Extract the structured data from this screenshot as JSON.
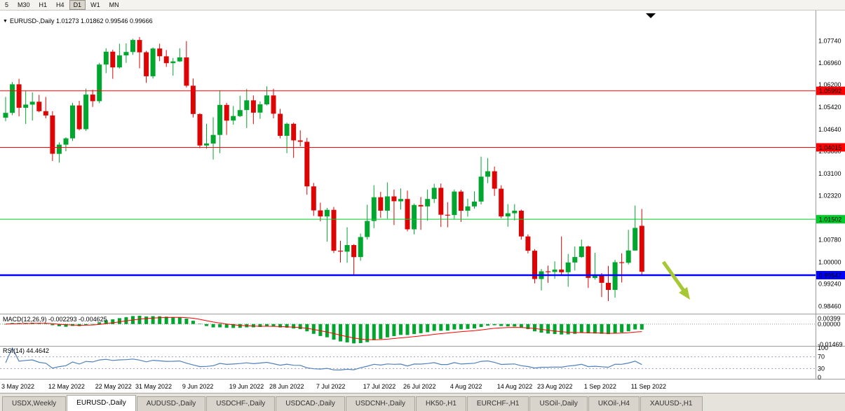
{
  "colors": {
    "up": "#00a62d",
    "down": "#dd0404",
    "red_line": "#ff0000",
    "green_line": "#00cc2c",
    "blue_line": "#0000ff",
    "macd_hist": "#00a62d",
    "macd_signal": "#ff0000",
    "rsi_line": "#4f81bd",
    "arrow": "#a6c832"
  },
  "toolbar": {
    "timeframes": [
      "5",
      "M30",
      "H1",
      "H4",
      "D1",
      "W1",
      "MN"
    ],
    "active": "D1"
  },
  "chart": {
    "title": "EURUSD-,Daily 1.01273 1.01862 0.99546 0.99666"
  },
  "chart_data": {
    "type": "candlestick",
    "symbol": "EURUSD-",
    "timeframe": "Daily",
    "ohlc_readout": {
      "open": "1.01273",
      "high": "1.01862",
      "low": "0.99546",
      "close": "0.99666"
    },
    "y_axis_ticks": [
      "1.07740",
      "1.06960",
      "1.06200",
      "1.05420",
      "1.04640",
      "1.03880",
      "1.03100",
      "1.02320",
      "1.01540",
      "1.00780",
      "1.00000",
      "0.99240",
      "0.98460"
    ],
    "h_lines": [
      {
        "name": "resistance-line-upper",
        "label": "1.05992",
        "value": 1.05992,
        "color": "#ff0000",
        "width": 1
      },
      {
        "name": "resistance-line-lower",
        "label": "1.04015",
        "value": 1.04015,
        "color": "#ff0000",
        "width": 1
      },
      {
        "name": "support-line-green",
        "label": "1.01502",
        "value": 1.01502,
        "color": "#00cc2c",
        "width": 1
      },
      {
        "name": "current-price-line",
        "label": "0.99547",
        "value": 0.99547,
        "color": "#0000ff",
        "width": 2.5
      }
    ],
    "x_labels": [
      {
        "label": "3 May 2022",
        "i": 0
      },
      {
        "label": "12 May 2022",
        "i": 7
      },
      {
        "label": "22 May 2022",
        "i": 14
      },
      {
        "label": "31 May 2022",
        "i": 20
      },
      {
        "label": "9 Jun 2022",
        "i": 27
      },
      {
        "label": "19 Jun 2022",
        "i": 34
      },
      {
        "label": "28 Jun 2022",
        "i": 40
      },
      {
        "label": "7 Jul 2022",
        "i": 47
      },
      {
        "label": "17 Jul 2022",
        "i": 54
      },
      {
        "label": "26 Jul 2022",
        "i": 60
      },
      {
        "label": "4 Aug 2022",
        "i": 67
      },
      {
        "label": "14 Aug 2022",
        "i": 74
      },
      {
        "label": "23 Aug 2022",
        "i": 80
      },
      {
        "label": "1 Sep 2022",
        "i": 87
      },
      {
        "label": "11 Sep 2022",
        "i": 94
      }
    ],
    "candles": [
      [
        1.0505,
        1.0578,
        1.0493,
        1.0522
      ],
      [
        1.0522,
        1.063,
        1.0514,
        1.0622
      ],
      [
        1.0622,
        1.0641,
        1.051,
        1.054
      ],
      [
        1.054,
        1.0599,
        1.0483,
        1.0551
      ],
      [
        1.0551,
        1.0594,
        1.0495,
        1.0561
      ],
      [
        1.0561,
        1.0585,
        1.0524,
        1.0528
      ],
      [
        1.0528,
        1.0578,
        1.0503,
        1.0513
      ],
      [
        1.0513,
        1.0528,
        1.0354,
        1.0379
      ],
      [
        1.0379,
        1.0419,
        1.0348,
        1.0411
      ],
      [
        1.0411,
        1.0437,
        1.0388,
        1.0433
      ],
      [
        1.0433,
        1.0557,
        1.0424,
        1.0548
      ],
      [
        1.0548,
        1.0564,
        1.0461,
        1.0465
      ],
      [
        1.0465,
        1.0607,
        1.0459,
        1.0586
      ],
      [
        1.0586,
        1.0603,
        1.0543,
        1.0563
      ],
      [
        1.0563,
        1.0697,
        1.0556,
        1.0691
      ],
      [
        1.0691,
        1.0748,
        1.0661,
        1.0736
      ],
      [
        1.0736,
        1.0743,
        1.0641,
        1.0681
      ],
      [
        1.0681,
        1.0764,
        1.0677,
        1.0723
      ],
      [
        1.0723,
        1.0765,
        1.0697,
        1.0735
      ],
      [
        1.0735,
        1.0781,
        1.0725,
        1.0777
      ],
      [
        1.0777,
        1.0787,
        1.0678,
        1.0734
      ],
      [
        1.0734,
        1.0739,
        1.0627,
        1.065
      ],
      [
        1.065,
        1.0751,
        1.0642,
        1.0747
      ],
      [
        1.0747,
        1.0764,
        1.0703,
        1.072
      ],
      [
        1.072,
        1.0742,
        1.0683,
        1.0696
      ],
      [
        1.0696,
        1.0714,
        1.0652,
        1.0702
      ],
      [
        1.0702,
        1.0748,
        1.07,
        1.0716
      ],
      [
        1.0716,
        1.0773,
        1.0611,
        1.0617
      ],
      [
        1.0617,
        1.0642,
        1.0506,
        1.0518
      ],
      [
        1.0518,
        1.0521,
        1.0399,
        1.0408
      ],
      [
        1.0408,
        1.0484,
        1.0397,
        1.0415
      ],
      [
        1.0415,
        1.0507,
        1.0359,
        1.0445
      ],
      [
        1.0445,
        1.0601,
        1.0381,
        1.055
      ],
      [
        1.055,
        1.0557,
        1.0445,
        1.0495
      ],
      [
        1.0495,
        1.0546,
        1.0481,
        1.0511
      ],
      [
        1.0511,
        1.0582,
        1.0508,
        1.0532
      ],
      [
        1.0532,
        1.0606,
        1.0469,
        1.0566
      ],
      [
        1.0566,
        1.0583,
        1.0483,
        1.0523
      ],
      [
        1.0523,
        1.0562,
        1.0501,
        1.0552
      ],
      [
        1.0552,
        1.0615,
        1.0548,
        1.0583
      ],
      [
        1.0583,
        1.0606,
        1.0503,
        1.0519
      ],
      [
        1.0519,
        1.0536,
        1.0433,
        1.0442
      ],
      [
        1.0442,
        1.0488,
        1.0381,
        1.0484
      ],
      [
        1.0484,
        1.0488,
        1.0365,
        1.0426
      ],
      [
        1.0426,
        1.0461,
        1.0405,
        1.0421
      ],
      [
        1.0421,
        1.0435,
        1.0236,
        1.0265
      ],
      [
        1.0265,
        1.0277,
        1.0162,
        1.0181
      ],
      [
        1.0181,
        1.0208,
        1.0143,
        1.016
      ],
      [
        1.016,
        1.019,
        1.0072,
        1.0183
      ],
      [
        1.0183,
        1.0193,
        1.0032,
        1.004
      ],
      [
        1.004,
        1.0075,
        0.9999,
        1.0037
      ],
      [
        1.0037,
        1.0122,
        0.9998,
        1.006
      ],
      [
        1.006,
        1.0063,
        0.9952,
        1.0018
      ],
      [
        1.0018,
        1.01,
        1.0005,
        1.0088
      ],
      [
        1.0088,
        1.0201,
        1.0079,
        1.0144
      ],
      [
        1.0144,
        1.0269,
        1.0119,
        1.0227
      ],
      [
        1.0227,
        1.0246,
        1.0155,
        1.018
      ],
      [
        1.018,
        1.0279,
        1.0152,
        1.023
      ],
      [
        1.023,
        1.0254,
        1.013,
        1.0213
      ],
      [
        1.0213,
        1.0258,
        1.0184,
        1.0221
      ],
      [
        1.0221,
        1.025,
        1.0108,
        1.0115
      ],
      [
        1.0115,
        1.0205,
        1.0097,
        1.02
      ],
      [
        1.02,
        1.0228,
        1.0113,
        1.0195
      ],
      [
        1.0195,
        1.0254,
        1.0145,
        1.0221
      ],
      [
        1.0221,
        1.0274,
        1.0207,
        1.026
      ],
      [
        1.026,
        1.0275,
        1.0123,
        1.0166
      ],
      [
        1.0166,
        1.021,
        1.0122,
        1.0165
      ],
      [
        1.0165,
        1.0254,
        1.0151,
        1.0247
      ],
      [
        1.0247,
        1.0253,
        1.0141,
        1.018
      ],
      [
        1.018,
        1.0222,
        1.0159,
        1.0195
      ],
      [
        1.0195,
        1.0248,
        1.0187,
        1.0212
      ],
      [
        1.0212,
        1.0369,
        1.0202,
        1.0299
      ],
      [
        1.0299,
        1.0364,
        1.0276,
        1.0318
      ],
      [
        1.0318,
        1.0334,
        1.0232,
        1.0257
      ],
      [
        1.0257,
        1.0269,
        1.0154,
        1.016
      ],
      [
        1.016,
        1.0203,
        1.0124,
        1.0171
      ],
      [
        1.0171,
        1.0203,
        1.0146,
        1.018
      ],
      [
        1.018,
        1.0184,
        1.0079,
        1.009
      ],
      [
        1.009,
        1.0097,
        1.0031,
        1.004
      ],
      [
        1.004,
        1.0046,
        0.9926,
        0.9941
      ],
      [
        0.9941,
        0.9976,
        0.9901,
        0.9968
      ],
      [
        0.9968,
        0.9988,
        0.9928,
        0.9966
      ],
      [
        0.9966,
        1.0003,
        0.9942,
        0.9974
      ],
      [
        0.9974,
        1.009,
        0.9957,
        0.9965
      ],
      [
        0.9965,
        1.0029,
        0.9914,
        0.9999
      ],
      [
        0.9999,
        1.0055,
        0.9971,
        1.0018
      ],
      [
        1.0018,
        1.0079,
        1.0015,
        1.0055
      ],
      [
        1.0055,
        1.0058,
        0.991,
        0.9945
      ],
      [
        0.9945,
        1.0033,
        0.9939,
        0.9955
      ],
      [
        0.9955,
        0.9962,
        0.9878,
        0.9928
      ],
      [
        0.9928,
        0.9987,
        0.9864,
        0.9903
      ],
      [
        0.9903,
        1.0008,
        0.9876,
        1.0
      ],
      [
        1.0,
        1.0031,
        0.9929,
        0.9998
      ],
      [
        0.9998,
        1.0113,
        0.9992,
        1.0041
      ],
      [
        1.0041,
        1.0198,
        1.004,
        1.012
      ],
      [
        1.01273,
        1.01862,
        0.99546,
        0.99666
      ]
    ]
  },
  "macd_panel": {
    "label": "MACD(12,26,9) -0.002293 -0.004625",
    "fast": 12,
    "slow": 26,
    "signal": 9,
    "axis_labels": [
      {
        "label": "0.00399",
        "v": 0.00399
      },
      {
        "label": "0.00000",
        "v": 0
      },
      {
        "label": "-0.01469",
        "v": -0.01469
      }
    ]
  },
  "rsi_panel": {
    "label": "RSI(14) 44.4642",
    "period": 14,
    "value": "44.4642",
    "levels": [
      70,
      30
    ],
    "axis_labels": [
      {
        "label": "100",
        "v": 100
      },
      {
        "label": "70",
        "v": 70
      },
      {
        "label": "30",
        "v": 30
      },
      {
        "label": "0",
        "v": 0
      }
    ]
  },
  "tabs": {
    "active_index": 1,
    "items": [
      "USDX,Weekly",
      "EURUSD-,Daily",
      "AUDUSD-,Daily",
      "USDCHF-,Daily",
      "USDCAD-,Daily",
      "USDCNH-,Daily",
      "HK50-,H1",
      "EURCHF-,H1",
      "USOil-,Daily",
      "UKOil-,H4",
      "XAUUSD-,H1"
    ]
  }
}
